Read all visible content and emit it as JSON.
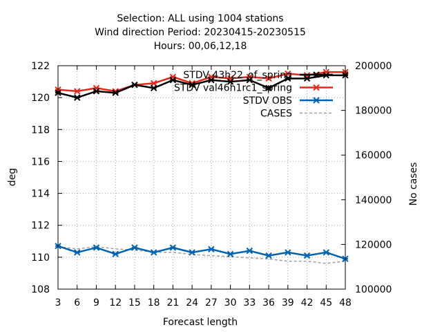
{
  "chart_data": {
    "type": "line",
    "title_lines": [
      "Selection: ALL using  1004 stations",
      "Wind direction   Period: 20230415-20230515",
      "Hours:  00,06,12,18"
    ],
    "xlabel": "Forecast length",
    "ylabel": "deg",
    "y2label": "No cases",
    "x": [
      3,
      6,
      9,
      12,
      15,
      18,
      21,
      24,
      27,
      30,
      33,
      36,
      39,
      42,
      45,
      48
    ],
    "xlim": [
      3,
      48
    ],
    "ylim": [
      108,
      122
    ],
    "y2lim": [
      100000,
      200000
    ],
    "x_ticks": [
      "3",
      "6",
      "9",
      "12",
      "15",
      "18",
      "21",
      "24",
      "27",
      "30",
      "33",
      "36",
      "39",
      "42",
      "45",
      "48"
    ],
    "y_ticks": [
      "108",
      "110",
      "112",
      "114",
      "116",
      "118",
      "120",
      "122"
    ],
    "y2_ticks": [
      "100000",
      "120000",
      "140000",
      "160000",
      "180000",
      "200000"
    ],
    "grid": true,
    "legend_position": "top-right",
    "series": [
      {
        "name": "STDV 43h22_of_spring",
        "axis": "left",
        "color": "#000000",
        "marker": "star",
        "values": [
          120.3,
          120.0,
          120.4,
          120.3,
          120.8,
          120.6,
          121.1,
          120.8,
          121.1,
          121.0,
          121.1,
          120.6,
          121.2,
          121.2,
          121.4,
          121.4
        ]
      },
      {
        "name": "STDV val46h1rc1_spring",
        "axis": "left",
        "color": "#e3291b",
        "marker": "star",
        "values": [
          120.5,
          120.4,
          120.6,
          120.4,
          120.8,
          120.9,
          121.3,
          120.9,
          121.3,
          121.2,
          121.3,
          121.2,
          121.5,
          121.4,
          121.6,
          121.6
        ]
      },
      {
        "name": "STDV OBS",
        "axis": "left",
        "color": "#0063b0",
        "marker": "star",
        "values": [
          110.7,
          110.3,
          110.6,
          110.2,
          110.6,
          110.3,
          110.6,
          110.3,
          110.5,
          110.2,
          110.4,
          110.1,
          110.3,
          110.1,
          110.3,
          109.9
        ]
      },
      {
        "name": "CASES",
        "axis": "right",
        "color": "#a0a0a0",
        "dashed": true,
        "values": [
          119000,
          118000,
          119000,
          118000,
          117500,
          116500,
          116500,
          115500,
          115000,
          114500,
          114000,
          113500,
          112500,
          112500,
          111500,
          112500
        ]
      }
    ]
  }
}
